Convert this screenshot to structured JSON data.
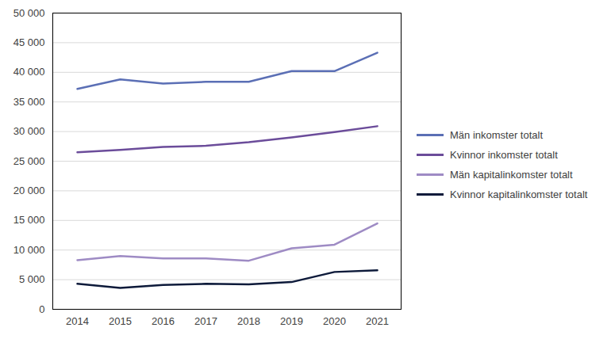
{
  "chart_data": {
    "type": "line",
    "categories": [
      "2014",
      "2015",
      "2016",
      "2017",
      "2018",
      "2019",
      "2020",
      "2021"
    ],
    "series": [
      {
        "name": "Män inkomster totalt",
        "color": "#5b6fb5",
        "values": [
          37200,
          38800,
          38100,
          38400,
          38400,
          40200,
          40200,
          43300
        ]
      },
      {
        "name": "Kvinnor inkomster totalt",
        "color": "#6b4c9a",
        "values": [
          26500,
          26900,
          27400,
          27600,
          28200,
          29000,
          29900,
          30900
        ]
      },
      {
        "name": "Män kapitalinkomster totalt",
        "color": "#9e8bc4",
        "values": [
          8300,
          9000,
          8600,
          8600,
          8200,
          10300,
          10900,
          14500
        ]
      },
      {
        "name": "Kvinnor kapitalinkomster totalt",
        "color": "#0d1a3a",
        "values": [
          4300,
          3600,
          4100,
          4300,
          4200,
          4600,
          6300,
          6600
        ]
      }
    ],
    "ylim": [
      0,
      50000
    ],
    "yticks": [
      0,
      {
        "value": 5000,
        "label": "5 000"
      },
      {
        "value": 10000,
        "label": "10 000"
      },
      {
        "value": 15000,
        "label": "15 000"
      },
      {
        "value": 20000,
        "label": "20 000"
      },
      {
        "value": 25000,
        "label": "25 000"
      },
      {
        "value": 30000,
        "label": "30 000"
      },
      {
        "value": 35000,
        "label": "35 000"
      },
      {
        "value": 40000,
        "label": "40 000"
      },
      {
        "value": 45000,
        "label": "45 000"
      },
      {
        "value": 50000,
        "label": "50 000"
      }
    ],
    "grid": true,
    "legend": "right"
  }
}
